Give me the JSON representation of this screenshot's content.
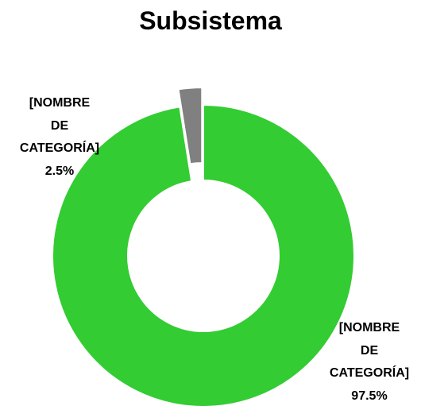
{
  "chart_data": {
    "type": "donut",
    "title": "Subsistema",
    "categories": [
      "[NOMBRE DE CATEGORÍA]",
      "[NOMBRE DE CATEGORÍA]"
    ],
    "values": [
      97.5,
      2.5
    ],
    "value_labels": [
      "97.5%",
      "2.5%"
    ],
    "colors": [
      "#33cc33",
      "#808080"
    ],
    "exploded": [
      false,
      true
    ]
  }
}
